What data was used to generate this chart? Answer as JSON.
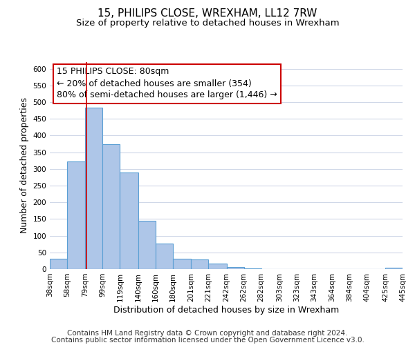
{
  "title": "15, PHILIPS CLOSE, WREXHAM, LL12 7RW",
  "subtitle": "Size of property relative to detached houses in Wrexham",
  "xlabel": "Distribution of detached houses by size in Wrexham",
  "ylabel": "Number of detached properties",
  "bar_edges": [
    38,
    58,
    79,
    99,
    119,
    140,
    160,
    180,
    201,
    221,
    242,
    262,
    282,
    303,
    323,
    343,
    364,
    384,
    404,
    425,
    445
  ],
  "bar_heights": [
    32,
    322,
    484,
    374,
    290,
    145,
    76,
    32,
    29,
    16,
    7,
    2,
    1,
    1,
    0,
    0,
    0,
    0,
    0,
    4
  ],
  "bar_color": "#aec6e8",
  "bar_edge_color": "#5a9fd4",
  "bar_linewidth": 0.8,
  "property_line_x": 80,
  "property_line_color": "#cc0000",
  "annotation_line1": "15 PHILIPS CLOSE: 80sqm",
  "annotation_line2": "← 20% of detached houses are smaller (354)",
  "annotation_line3": "80% of semi-detached houses are larger (1,446) →",
  "annotation_box_color": "#ffffff",
  "annotation_box_edgecolor": "#cc0000",
  "ylim": [
    0,
    620
  ],
  "xlim": [
    38,
    445
  ],
  "yticks": [
    0,
    50,
    100,
    150,
    200,
    250,
    300,
    350,
    400,
    450,
    500,
    550,
    600
  ],
  "x_tick_labels": [
    "38sqm",
    "58sqm",
    "79sqm",
    "99sqm",
    "119sqm",
    "140sqm",
    "160sqm",
    "180sqm",
    "201sqm",
    "221sqm",
    "242sqm",
    "262sqm",
    "282sqm",
    "303sqm",
    "323sqm",
    "343sqm",
    "364sqm",
    "384sqm",
    "404sqm",
    "425sqm",
    "445sqm"
  ],
  "x_tick_positions": [
    38,
    58,
    79,
    99,
    119,
    140,
    160,
    180,
    201,
    221,
    242,
    262,
    282,
    303,
    323,
    343,
    364,
    384,
    404,
    425,
    445
  ],
  "footer_line1": "Contains HM Land Registry data © Crown copyright and database right 2024.",
  "footer_line2": "Contains public sector information licensed under the Open Government Licence v3.0.",
  "background_color": "#ffffff",
  "grid_color": "#d0d8e8",
  "title_fontsize": 11,
  "subtitle_fontsize": 9.5,
  "xlabel_fontsize": 9,
  "ylabel_fontsize": 9,
  "tick_fontsize": 7.5,
  "annotation_fontsize": 9,
  "footer_fontsize": 7.5
}
